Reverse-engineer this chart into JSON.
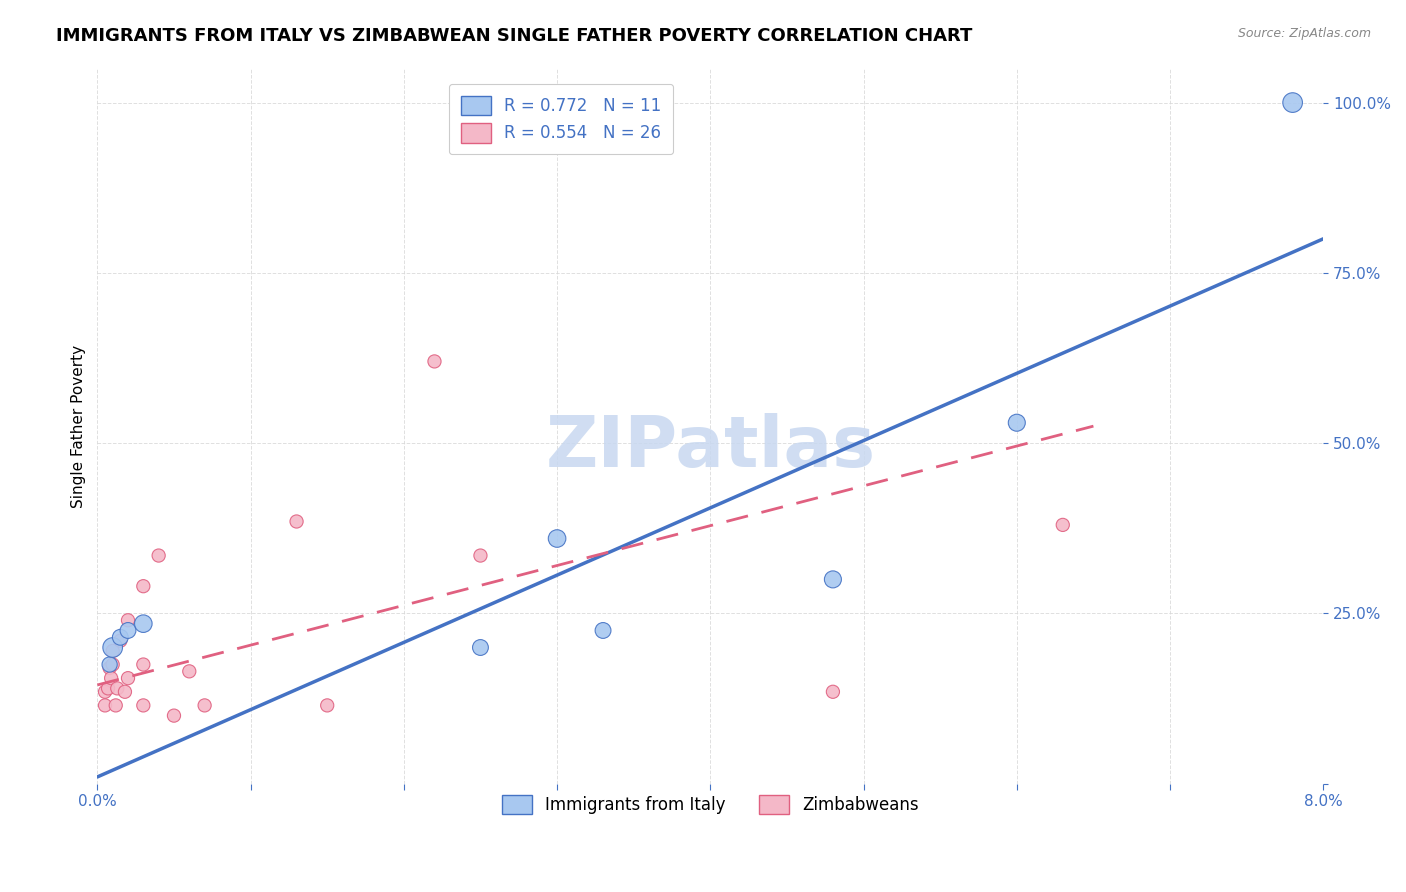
{
  "title": "IMMIGRANTS FROM ITALY VS ZIMBABWEAN SINGLE FATHER POVERTY CORRELATION CHART",
  "source": "Source: ZipAtlas.com",
  "ylabel": "Single Father Poverty",
  "xlim": [
    0.0,
    0.08
  ],
  "ylim": [
    0.0,
    1.05
  ],
  "xticks": [
    0.0,
    0.01,
    0.02,
    0.03,
    0.04,
    0.05,
    0.06,
    0.07,
    0.08
  ],
  "yticks": [
    0.0,
    0.25,
    0.5,
    0.75,
    1.0
  ],
  "italy_x": [
    0.0008,
    0.001,
    0.0015,
    0.002,
    0.003,
    0.025,
    0.03,
    0.033,
    0.048,
    0.06,
    0.078
  ],
  "italy_y": [
    0.175,
    0.2,
    0.215,
    0.225,
    0.235,
    0.2,
    0.36,
    0.225,
    0.3,
    0.53,
    1.0
  ],
  "italy_sizes": [
    120,
    200,
    130,
    130,
    160,
    130,
    160,
    130,
    150,
    150,
    200
  ],
  "zimb_x": [
    0.0005,
    0.0005,
    0.0007,
    0.0008,
    0.0009,
    0.001,
    0.001,
    0.0012,
    0.0013,
    0.0015,
    0.0018,
    0.002,
    0.002,
    0.003,
    0.003,
    0.003,
    0.004,
    0.005,
    0.006,
    0.007,
    0.013,
    0.015,
    0.022,
    0.025,
    0.048,
    0.063
  ],
  "zimb_y": [
    0.115,
    0.135,
    0.14,
    0.17,
    0.155,
    0.175,
    0.195,
    0.115,
    0.14,
    0.21,
    0.135,
    0.155,
    0.24,
    0.29,
    0.115,
    0.175,
    0.335,
    0.1,
    0.165,
    0.115,
    0.385,
    0.115,
    0.62,
    0.335,
    0.135,
    0.38
  ],
  "zimb_sizes": [
    90,
    90,
    90,
    90,
    90,
    90,
    90,
    90,
    90,
    90,
    90,
    90,
    90,
    90,
    90,
    90,
    90,
    90,
    90,
    90,
    90,
    90,
    90,
    90,
    90,
    90
  ],
  "italy_color": "#a8c8f0",
  "italy_line_color": "#4472c4",
  "zimb_color": "#f4b8c8",
  "zimb_line_color": "#e06080",
  "blue_line_x0": 0.0,
  "blue_line_y0": 0.01,
  "blue_line_x1": 0.08,
  "blue_line_y1": 0.8,
  "pink_line_x0": 0.0,
  "pink_line_y0": 0.145,
  "pink_line_x1": 0.065,
  "pink_line_y1": 0.525,
  "R_italy": 0.772,
  "N_italy": 11,
  "R_zimb": 0.554,
  "N_zimb": 26,
  "italy_label": "Immigrants from Italy",
  "zimb_label": "Zimbabweans",
  "watermark": "ZIPatlas",
  "watermark_color": "#c8d8f0",
  "background_color": "#ffffff",
  "title_fontsize": 13,
  "axis_label_fontsize": 11,
  "tick_fontsize": 11,
  "legend_fontsize": 12
}
